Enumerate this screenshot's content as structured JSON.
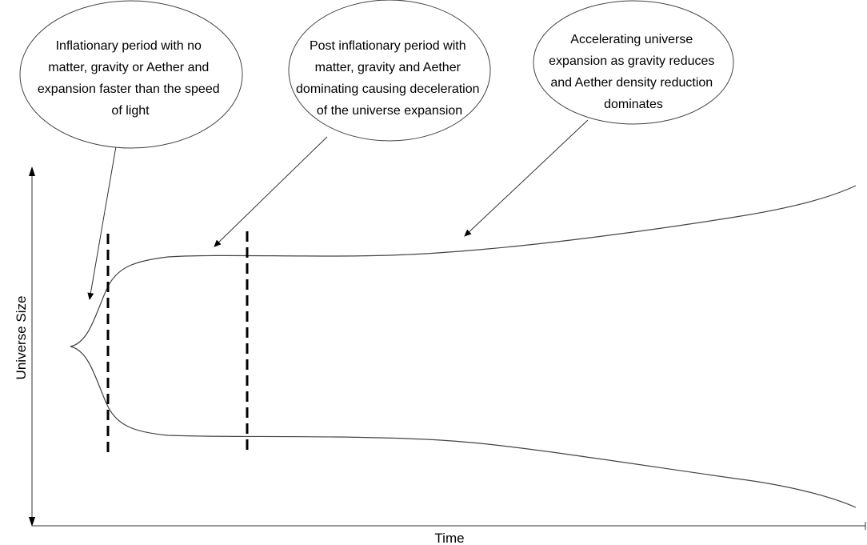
{
  "axes": {
    "y_label": "Universe Size",
    "x_label": "Time"
  },
  "callouts": [
    {
      "id": "inflationary",
      "lines": [
        "Inflationary period with no",
        "matter, gravity or Aether and",
        "expansion faster than the speed",
        "of light"
      ]
    },
    {
      "id": "post-inflationary",
      "lines": [
        "Post inflationary period with",
        "matter, gravity and Aether",
        "dominating causing deceleration",
        "of the universe expansion"
      ]
    },
    {
      "id": "accelerating",
      "lines": [
        "Accelerating universe",
        "expansion as gravity reduces",
        "and Aether density reduction",
        "dominates"
      ]
    }
  ],
  "phase_boundaries": [
    {
      "name": "end-of-inflation",
      "style": "dashed"
    },
    {
      "name": "end-of-deceleration",
      "style": "dashed"
    }
  ],
  "colors": {
    "curve": "#444444",
    "dashed": "#000000",
    "text": "#000000"
  }
}
